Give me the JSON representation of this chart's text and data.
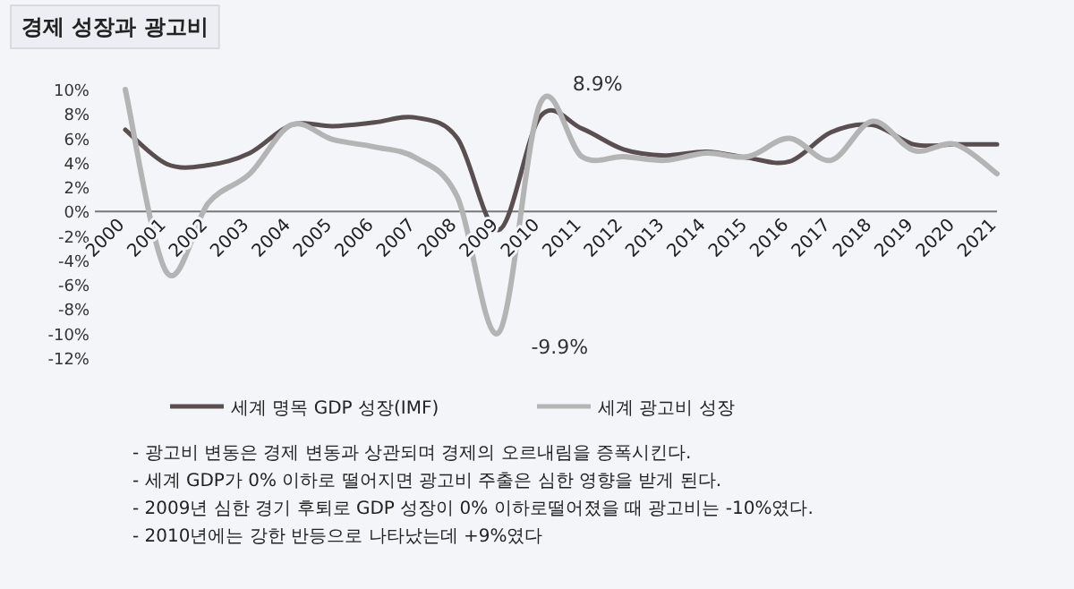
{
  "chart_data": {
    "type": "line",
    "title": "경제 성장과 광고비",
    "categories": [
      "2000",
      "2001",
      "2002",
      "2003",
      "2004",
      "2005",
      "2006",
      "2007",
      "2008",
      "2009",
      "2010",
      "2011",
      "2012",
      "2013",
      "2014",
      "2015",
      "2016",
      "2017",
      "2018",
      "2019",
      "2020",
      "2021"
    ],
    "series": [
      {
        "name": "세계 명목 GDP 성장(IMF)",
        "color": "#5a4f50",
        "values": [
          6.7,
          3.9,
          3.8,
          4.8,
          7.1,
          7.0,
          7.3,
          7.7,
          6.0,
          -1.5,
          7.8,
          6.8,
          5.1,
          4.6,
          4.9,
          4.4,
          4.1,
          6.5,
          7.1,
          5.5,
          5.5,
          5.5
        ]
      },
      {
        "name": "세계 광고비 성장",
        "color": "#b4b4b4",
        "values": [
          10,
          -5.0,
          0.7,
          3.1,
          7.1,
          5.9,
          5.3,
          4.4,
          1.2,
          -9.9,
          8.9,
          4.5,
          4.5,
          4.2,
          4.8,
          4.5,
          6.0,
          4.2,
          7.4,
          5.0,
          5.5,
          3.1
        ]
      }
    ],
    "ylim": [
      -12,
      10
    ],
    "yticks": [
      {
        "value": 10,
        "label": "10%"
      },
      {
        "value": 8,
        "label": "8%"
      },
      {
        "value": 6,
        "label": "6%"
      },
      {
        "value": 4,
        "label": "4%"
      },
      {
        "value": 2,
        "label": "2%"
      },
      {
        "value": 0,
        "label": "0%"
      },
      {
        "value": -2,
        "label": "-2%"
      },
      {
        "value": -4,
        "label": "-4%"
      },
      {
        "value": -6,
        "label": "-6%"
      },
      {
        "value": -8,
        "label": "-8%"
      },
      {
        "value": -10,
        "label": "-10%"
      },
      {
        "value": -12,
        "label": "-12%"
      }
    ],
    "legend": "bottom",
    "annotations": [
      {
        "text": "8.9%",
        "x": "2010",
        "y": 8.9
      },
      {
        "text": "-9.9%",
        "x": "2009",
        "y": -9.9
      },
      "- 광고비 변동은 경제 변동과 상관되며 경제의 오르내림을 증폭시킨다.",
      "- 세계 GDP가 0% 이하로 떨어지면 광고비 주출은 심한 영향을 받게 된다.",
      "- 2009년 심한 경기 후퇴로 GDP 성장이 0% 이하로떨어졌을 때 광고비는 -10%였다.",
      "- 2010년에는 강한 반등으로 나타났는데 +9%였다"
    ]
  }
}
